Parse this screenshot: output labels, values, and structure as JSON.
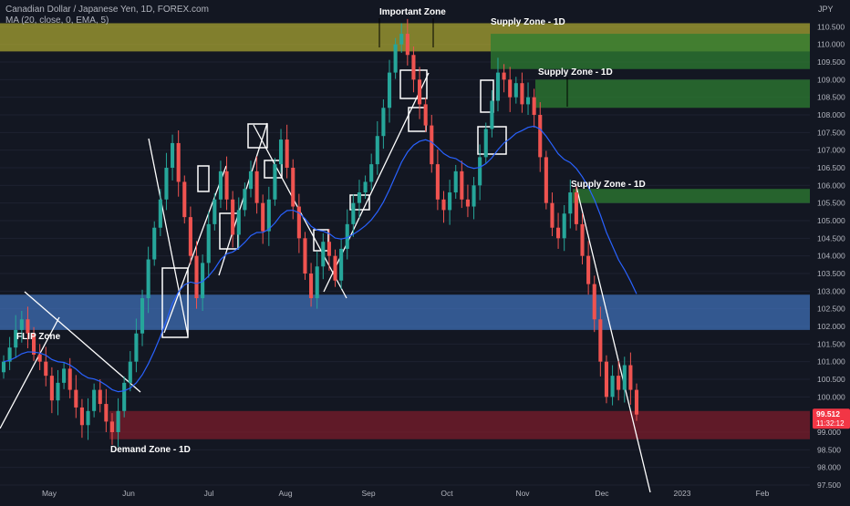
{
  "legend": {
    "symbol": "Canadian Dollar / Japanese Yen, 1D, FOREX.com",
    "indicator": "MA (20, close, 0, EMA, 5)"
  },
  "colors": {
    "background": "#131722",
    "up": "#26a69a",
    "down": "#ef5350",
    "ma": "#2962ff",
    "supply": "#2e7d32",
    "important": "#9e9a31",
    "demand": "#7b1c2b",
    "flip": "#3f6fb5",
    "drawing": "#ffffff",
    "price_badge": "#f23645"
  },
  "chart_data": {
    "type": "candlestick",
    "title": "Canadian Dollar / Japanese Yen, 1D, FOREX.com",
    "ylabel": "JPY",
    "ylim": [
      97.5,
      111.0
    ],
    "y_ticks": [
      "110.500",
      "110.000",
      "109.500",
      "109.000",
      "108.500",
      "108.000",
      "107.500",
      "107.000",
      "106.500",
      "106.000",
      "105.500",
      "105.000",
      "104.500",
      "104.000",
      "103.500",
      "103.000",
      "102.500",
      "102.000",
      "101.500",
      "101.000",
      "100.500",
      "100.000",
      "99.000",
      "98.500",
      "98.000",
      "97.500"
    ],
    "x_ticks": [
      "May",
      "Jun",
      "Jul",
      "Aug",
      "Sep",
      "Oct",
      "Nov",
      "Dec",
      "2023",
      "Feb"
    ],
    "last_price": "99.512",
    "countdown": "11:32:12",
    "close_series": [
      101.0,
      101.4,
      101.9,
      102.2,
      101.8,
      101.2,
      101.0,
      100.6,
      99.9,
      100.4,
      100.8,
      100.2,
      99.7,
      99.2,
      99.6,
      100.2,
      99.8,
      99.3,
      99.0,
      99.6,
      100.4,
      101.0,
      101.8,
      102.8,
      103.9,
      104.8,
      105.6,
      106.5,
      107.2,
      106.1,
      105.1,
      104.0,
      102.8,
      103.8,
      104.9,
      105.6,
      106.4,
      105.6,
      104.6,
      105.3,
      105.9,
      106.4,
      105.5,
      104.7,
      105.6,
      106.6,
      107.3,
      106.5,
      105.4,
      104.5,
      103.5,
      102.8,
      103.7,
      104.4,
      104.0,
      103.3,
      104.2,
      104.9,
      105.5,
      105.8,
      106.1,
      106.6,
      107.4,
      108.2,
      109.2,
      110.0,
      110.3,
      109.7,
      109.0,
      108.3,
      107.7,
      106.6,
      105.6,
      105.3,
      105.8,
      106.4,
      105.6,
      105.4,
      106.0,
      106.8,
      107.6,
      108.4,
      109.2,
      109.0,
      108.5,
      108.9,
      108.3,
      108.5,
      108.0,
      106.8,
      105.5,
      104.8,
      104.5,
      105.2,
      105.8,
      104.9,
      104.0,
      103.2,
      102.2,
      101.0,
      100.0,
      100.6,
      100.2,
      100.9,
      100.2,
      99.5
    ],
    "ma": {
      "name": "MA (20, close, 0, EMA, 5)",
      "period": 20
    },
    "zones": [
      {
        "label": "Important Zone",
        "y": [
          109.8,
          110.6
        ],
        "color": "#9e9a31"
      },
      {
        "label": "Supply Zone - 1D",
        "y": [
          109.3,
          110.3
        ],
        "color": "#2e7d32"
      },
      {
        "label": "Supply Zone - 1D",
        "y": [
          108.2,
          109.0
        ],
        "color": "#2e7d32"
      },
      {
        "label": "Supply Zone - 1D",
        "y": [
          105.5,
          105.9
        ],
        "color": "#2e7d32"
      },
      {
        "label": "FLIP Zone",
        "y": [
          101.9,
          102.9
        ],
        "color": "#3f6fb5"
      },
      {
        "label": "Demand Zone - 1D",
        "y": [
          98.8,
          99.6
        ],
        "color": "#7b1c2b"
      }
    ]
  }
}
